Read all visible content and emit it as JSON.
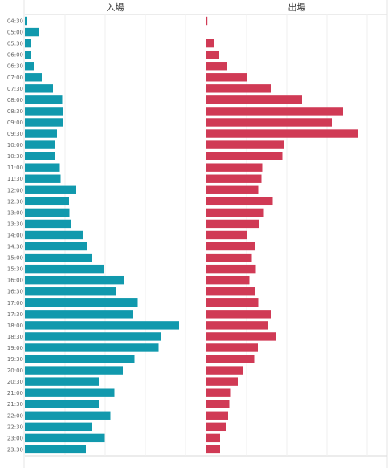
{
  "chart_data": {
    "type": "bar",
    "orientation": "horizontal",
    "layout": "two-panels-side-by-side",
    "grid": true,
    "categories": [
      "04:30",
      "05:00",
      "05:30",
      "06:00",
      "06:30",
      "07:00",
      "07:30",
      "08:00",
      "08:30",
      "09:00",
      "09:30",
      "10:00",
      "10:30",
      "11:00",
      "11:30",
      "12:00",
      "12:30",
      "13:00",
      "13:30",
      "14:00",
      "14:30",
      "15:00",
      "15:30",
      "16:00",
      "16:30",
      "17:00",
      "17:30",
      "18:00",
      "18:30",
      "19:00",
      "19:30",
      "20:00",
      "20:30",
      "21:00",
      "21:30",
      "22:00",
      "22:30",
      "23:00",
      "23:30"
    ],
    "xlim": [
      0,
      450
    ],
    "series": [
      {
        "name": "入場",
        "color": "#1199ad",
        "values": [
          5,
          34,
          15,
          16,
          22,
          42,
          70,
          93,
          96,
          95,
          80,
          75,
          76,
          87,
          89,
          127,
          110,
          111,
          116,
          144,
          154,
          166,
          196,
          246,
          226,
          281,
          269,
          384,
          339,
          333,
          273,
          244,
          184,
          223,
          184,
          213,
          168,
          199,
          152
        ]
      },
      {
        "name": "出場",
        "color": "#d03a55",
        "values": [
          2,
          0,
          20,
          30,
          50,
          100,
          160,
          238,
          340,
          312,
          378,
          192,
          189,
          139,
          137,
          129,
          165,
          143,
          132,
          102,
          120,
          113,
          123,
          107,
          121,
          129,
          160,
          154,
          172,
          128,
          119,
          90,
          78,
          59,
          57,
          54,
          48,
          34,
          34
        ]
      }
    ]
  }
}
